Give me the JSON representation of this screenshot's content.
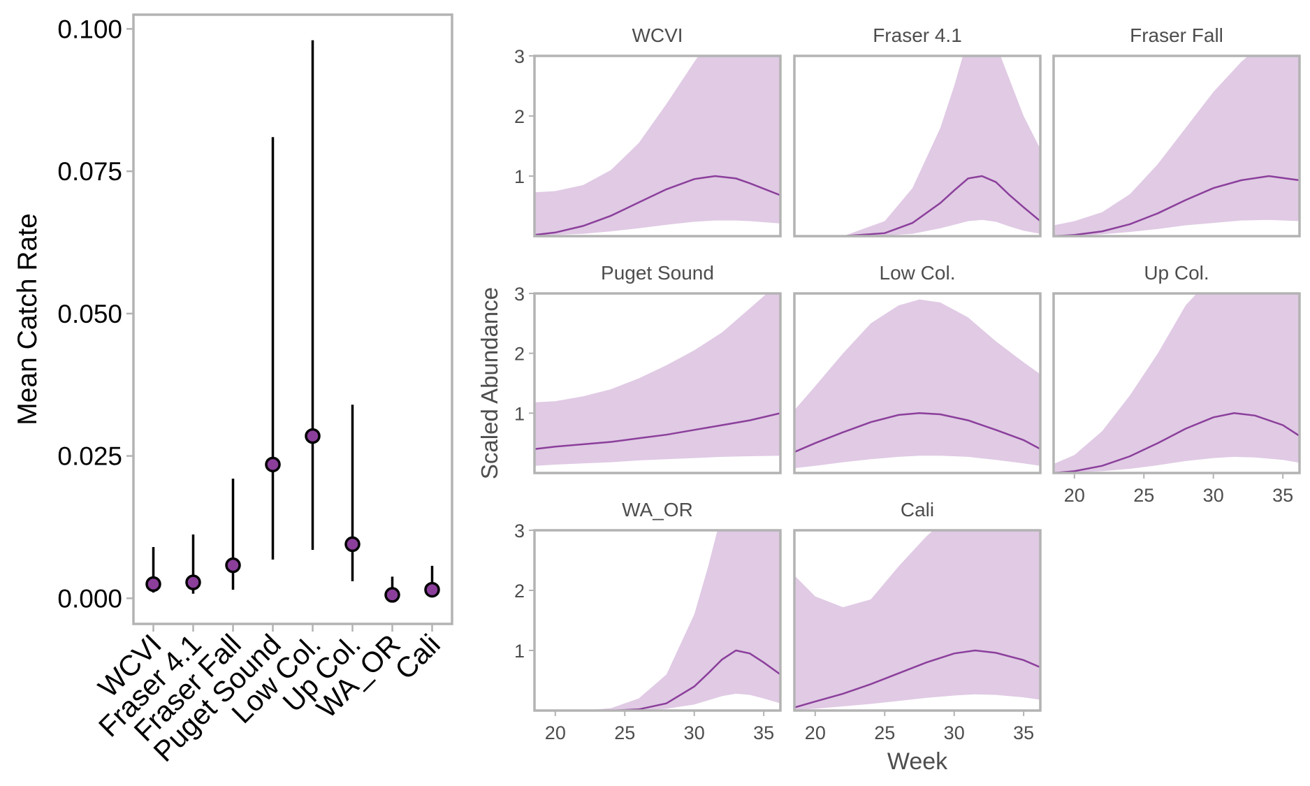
{
  "chart_data": [
    {
      "type": "scatter",
      "x_is_categorical": true,
      "categories": [
        "WCVI",
        "Fraser 4.1",
        "Fraser Fall",
        "Puget Sound",
        "Low Col.",
        "Up Col.",
        "WA_OR",
        "Cali"
      ],
      "series": [
        {
          "values": [
            0.0025,
            0.0028,
            0.0058,
            0.0235,
            0.0285,
            0.0095,
            0.0006,
            0.0015
          ],
          "lower": [
            0.001,
            0.0008,
            0.0015,
            0.0068,
            0.0085,
            0.003,
            0.0001,
            0.0003
          ],
          "upper": [
            0.009,
            0.0112,
            0.021,
            0.081,
            0.098,
            0.034,
            0.0038,
            0.0057
          ]
        }
      ],
      "ylabel": "Mean Catch Rate",
      "xlabel": "",
      "ylim": [
        -0.0045,
        0.1025
      ],
      "yticks": [
        0.0,
        0.025,
        0.05,
        0.075,
        0.1
      ],
      "ytick_labels": [
        "0.000",
        "0.025",
        "0.050",
        "0.075",
        "0.100"
      ],
      "point_color": "#8b3f9b",
      "grid": false
    },
    {
      "type": "area",
      "facets": true,
      "xlabel": "Week",
      "ylabel": "Scaled Abundance",
      "xlim": [
        18.5,
        36.2
      ],
      "xticks": [
        20,
        25,
        30,
        35
      ],
      "ylim": [
        0.0,
        3.0
      ],
      "yticks": [
        1,
        2,
        3
      ],
      "line_color": "#8b3f9b",
      "ribbon_color": "#e0cae4",
      "grid": false,
      "panels": [
        {
          "title": "WCVI",
          "x": [
            18.5,
            20,
            22,
            24,
            26,
            28,
            30,
            31.5,
            33,
            34,
            36.2
          ],
          "y": [
            0.02,
            0.06,
            0.17,
            0.34,
            0.56,
            0.78,
            0.95,
            1.0,
            0.96,
            0.88,
            0.68
          ],
          "lower": [
            0.01,
            0.02,
            0.04,
            0.08,
            0.13,
            0.19,
            0.24,
            0.26,
            0.26,
            0.25,
            0.21
          ],
          "upper": [
            0.73,
            0.75,
            0.85,
            1.1,
            1.55,
            2.2,
            2.9,
            3.4,
            3.6,
            3.6,
            3.6
          ]
        },
        {
          "title": "Fraser 4.1",
          "x": [
            18.5,
            22,
            25,
            27,
            29,
            30,
            31,
            32,
            33,
            34,
            35,
            36.2
          ],
          "y": [
            0.0,
            0.0,
            0.05,
            0.22,
            0.55,
            0.76,
            0.96,
            1.0,
            0.9,
            0.68,
            0.48,
            0.25
          ],
          "lower": [
            0.0,
            0.0,
            0.01,
            0.04,
            0.13,
            0.19,
            0.25,
            0.27,
            0.24,
            0.16,
            0.09,
            0.04
          ],
          "upper": [
            0.0,
            0.0,
            0.25,
            0.8,
            1.8,
            2.5,
            3.3,
            3.4,
            3.2,
            2.6,
            2.0,
            1.45
          ]
        },
        {
          "title": "Fraser Fall",
          "x": [
            18.5,
            20,
            22,
            24,
            26,
            28,
            30,
            32,
            34,
            36.2
          ],
          "y": [
            0.0,
            0.02,
            0.08,
            0.2,
            0.38,
            0.6,
            0.8,
            0.93,
            1.0,
            0.93
          ],
          "lower": [
            0.0,
            0.0,
            0.03,
            0.07,
            0.12,
            0.18,
            0.22,
            0.26,
            0.27,
            0.25
          ],
          "upper": [
            0.18,
            0.25,
            0.4,
            0.7,
            1.2,
            1.8,
            2.4,
            2.9,
            3.3,
            3.5
          ]
        },
        {
          "title": "Puget Sound",
          "x": [
            18.5,
            20,
            22,
            24,
            26,
            28,
            30,
            32,
            34,
            36.2
          ],
          "y": [
            0.4,
            0.44,
            0.48,
            0.52,
            0.58,
            0.64,
            0.72,
            0.8,
            0.88,
            1.0
          ],
          "lower": [
            0.12,
            0.14,
            0.16,
            0.18,
            0.21,
            0.23,
            0.25,
            0.27,
            0.28,
            0.29
          ],
          "upper": [
            1.18,
            1.2,
            1.28,
            1.4,
            1.58,
            1.8,
            2.05,
            2.35,
            2.75,
            3.2
          ]
        },
        {
          "title": "Low Col.",
          "x": [
            18.5,
            20,
            22,
            24,
            26,
            27.5,
            29,
            31,
            33,
            35,
            36.2
          ],
          "y": [
            0.35,
            0.5,
            0.68,
            0.85,
            0.97,
            1.0,
            0.98,
            0.88,
            0.72,
            0.55,
            0.4
          ],
          "lower": [
            0.08,
            0.12,
            0.18,
            0.23,
            0.27,
            0.29,
            0.29,
            0.27,
            0.22,
            0.16,
            0.12
          ],
          "upper": [
            1.05,
            1.45,
            2.0,
            2.5,
            2.8,
            2.9,
            2.85,
            2.6,
            2.2,
            1.85,
            1.65
          ]
        },
        {
          "title": "Up Col.",
          "x": [
            18.5,
            20,
            22,
            24,
            26,
            28,
            30,
            31.5,
            33,
            35,
            36.2
          ],
          "y": [
            0.0,
            0.03,
            0.12,
            0.28,
            0.5,
            0.74,
            0.93,
            1.0,
            0.96,
            0.8,
            0.62
          ],
          "lower": [
            0.0,
            0.01,
            0.03,
            0.07,
            0.13,
            0.2,
            0.25,
            0.27,
            0.26,
            0.22,
            0.17
          ],
          "upper": [
            0.15,
            0.3,
            0.7,
            1.3,
            2.0,
            2.8,
            3.3,
            3.5,
            3.5,
            3.5,
            3.5
          ]
        },
        {
          "title": "WA_OR",
          "x": [
            18.5,
            22,
            24,
            26,
            28,
            30,
            31,
            32,
            33,
            34,
            35,
            36.2
          ],
          "y": [
            0.0,
            0.0,
            0.0,
            0.02,
            0.12,
            0.4,
            0.62,
            0.85,
            1.0,
            0.95,
            0.8,
            0.6
          ],
          "lower": [
            0.0,
            0.0,
            0.0,
            0.0,
            0.03,
            0.1,
            0.17,
            0.24,
            0.28,
            0.26,
            0.2,
            0.12
          ],
          "upper": [
            0.0,
            0.0,
            0.04,
            0.2,
            0.6,
            1.6,
            2.4,
            3.3,
            3.6,
            3.6,
            3.6,
            3.6
          ]
        },
        {
          "title": "Cali",
          "x": [
            18.5,
            20,
            22,
            24,
            26,
            28,
            30,
            31.5,
            33,
            35,
            36.2
          ],
          "y": [
            0.05,
            0.15,
            0.28,
            0.44,
            0.62,
            0.8,
            0.95,
            1.0,
            0.96,
            0.84,
            0.72
          ],
          "lower": [
            0.01,
            0.03,
            0.07,
            0.11,
            0.16,
            0.21,
            0.25,
            0.27,
            0.26,
            0.22,
            0.18
          ],
          "upper": [
            2.25,
            1.9,
            1.72,
            1.85,
            2.4,
            2.9,
            3.3,
            3.6,
            3.6,
            3.6,
            3.6
          ]
        }
      ]
    }
  ]
}
